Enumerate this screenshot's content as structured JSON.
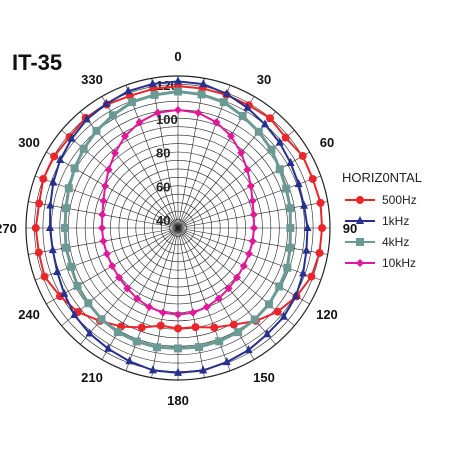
{
  "chart_data": {
    "type": "polar_line",
    "title": "IT-35",
    "legend_title": "HORIZ0NTAL",
    "legend_position": "right",
    "grid": true,
    "r_range": [
      30,
      120
    ],
    "r_ticks": [
      40,
      60,
      80,
      100,
      120
    ],
    "theta_step_deg": 10,
    "angle_labels": [
      "0",
      "30",
      "60",
      "90",
      "120",
      "150",
      "180",
      "210",
      "240",
      "270",
      "300",
      "330"
    ],
    "series": [
      {
        "name": "500Hz",
        "color": "#e8262c",
        "marker": "circle",
        "angles": [
          0,
          10,
          20,
          30,
          40,
          50,
          60,
          70,
          80,
          90,
          100,
          110,
          120,
          130,
          140,
          150,
          160,
          170,
          180,
          190,
          200,
          210,
          220,
          230,
          240,
          250,
          260,
          270,
          280,
          290,
          300,
          310,
          320,
          330,
          340,
          350
        ],
        "r": [
          114,
          113.9,
          113.9,
          113.9,
          114.8,
          113.2,
          115.3,
          114.9,
          115.7,
          115.3,
          115.1,
          114.1,
          111,
          107.1,
          101.8,
          96.1,
          92.7,
          89.6,
          89.5,
          88.7,
          92.7,
          97.4,
          101.8,
          107.4,
          110.7,
          114.1,
          113.7,
          114.2,
          113.5,
          114.9,
          114.7,
          113.8,
          115.1,
          114.4,
          113.3,
          113.7
        ]
      },
      {
        "name": "1kHz",
        "color": "#25308f",
        "marker": "triangle",
        "angles": [
          0,
          10,
          20,
          30,
          40,
          50,
          60,
          70,
          80,
          90,
          100,
          110,
          120,
          130,
          140,
          150,
          160,
          170,
          180,
          190,
          200,
          210,
          220,
          230,
          240,
          250,
          260,
          270,
          280,
          290,
          300,
          310,
          320,
          330,
          340,
          350
        ],
        "r": [
          116.8,
          116.5,
          114.5,
          112.2,
          110.1,
          108.6,
          107,
          106,
          105.8,
          106.7,
          107.2,
          108.8,
          110.6,
          111.8,
          112.1,
          113.5,
          114.5,
          115.7,
          115.8,
          115.6,
          114,
          112.6,
          111.5,
          110.1,
          107.8,
          106.1,
          105.3,
          105.8,
          106.8,
          108.6,
          110.6,
          112.2,
          114,
          114.9,
          116.2,
          116.6
        ]
      },
      {
        "name": "4kHz",
        "color": "#6b9a94",
        "marker": "square",
        "angles": [
          0,
          10,
          20,
          30,
          40,
          50,
          60,
          70,
          80,
          90,
          100,
          110,
          120,
          130,
          140,
          150,
          160,
          170,
          180,
          190,
          200,
          210,
          220,
          230,
          240,
          250,
          260,
          270,
          280,
          290,
          300,
          310,
          320,
          330,
          340,
          350
        ],
        "r": [
          110.8,
          110.3,
          109.3,
          106.6,
          104.4,
          102.2,
          99.6,
          98.2,
          97.5,
          96.5,
          97.4,
          98.9,
          99.2,
          100.3,
          100.7,
          101.2,
          101.4,
          101.6,
          101.3,
          101.7,
          101.5,
          101.2,
          100.5,
          99.3,
          98.7,
          97.3,
          97.3,
          96.9,
          97.4,
          98.8,
          100.7,
          102.9,
          105.1,
          107.1,
          109.4,
          110
        ]
      },
      {
        "name": "10kHz",
        "color": "#e0189a",
        "marker": "diamond",
        "angles": [
          0,
          10,
          20,
          30,
          40,
          50,
          60,
          70,
          80,
          90,
          100,
          110,
          120,
          130,
          140,
          150,
          160,
          170,
          180,
          190,
          200,
          210,
          220,
          230,
          240,
          250,
          260,
          270,
          280,
          290,
          300,
          310,
          320,
          330,
          340,
          350
        ],
        "r": [
          99.9,
          99.2,
          96.6,
          92.8,
          88.1,
          83.6,
          79.8,
          77,
          75.5,
          75,
          74.9,
          74.8,
          75,
          75.6,
          76.7,
          78.2,
          79.8,
          80.9,
          81.3,
          80.9,
          79.8,
          78.3,
          76.7,
          75.6,
          75,
          74.8,
          74.9,
          75,
          75.5,
          77,
          79.8,
          83.6,
          88,
          92.8,
          96.6,
          99.3
        ]
      }
    ]
  }
}
